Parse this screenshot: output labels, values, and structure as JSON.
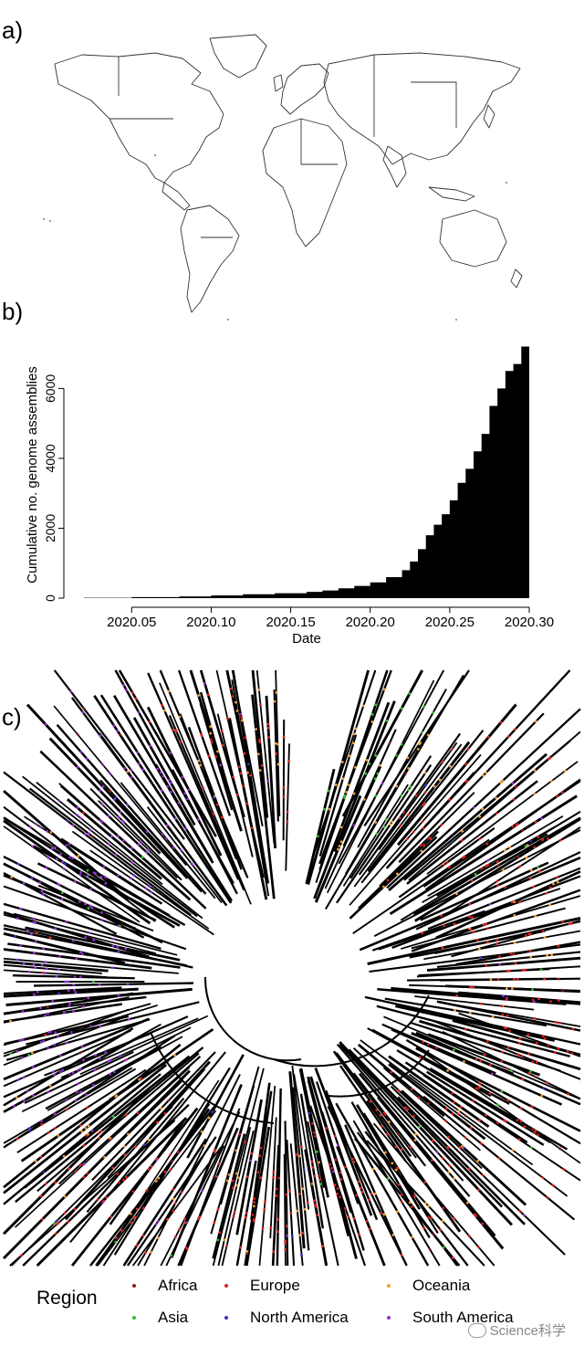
{
  "panels": {
    "a": "a)",
    "b": "b)",
    "c": "c)"
  },
  "chart_data": {
    "type": "area",
    "title": "",
    "xlabel": "Date",
    "ylabel": "Cumulative no. genome assemblies",
    "x_ticks": [
      "2020.05",
      "2020.10",
      "2020.15",
      "2020.20",
      "2020.25",
      "2020.30"
    ],
    "y_ticks": [
      "0",
      "2000",
      "4000",
      "6000"
    ],
    "xlim": [
      2020.02,
      2020.3
    ],
    "ylim": [
      0,
      7500
    ],
    "x": [
      2020.02,
      2020.05,
      2020.08,
      2020.1,
      2020.12,
      2020.14,
      2020.16,
      2020.17,
      2020.18,
      2020.19,
      2020.2,
      2020.21,
      2020.22,
      2020.225,
      2020.23,
      2020.235,
      2020.24,
      2020.245,
      2020.25,
      2020.255,
      2020.26,
      2020.265,
      2020.27,
      2020.275,
      2020.28,
      2020.285,
      2020.29,
      2020.295,
      2020.3
    ],
    "y": [
      10,
      30,
      50,
      80,
      110,
      140,
      180,
      220,
      280,
      350,
      450,
      600,
      800,
      1050,
      1400,
      1800,
      2100,
      2400,
      2800,
      3300,
      3700,
      4200,
      4700,
      5500,
      6000,
      6500,
      6700,
      7200,
      7400
    ],
    "grid": false
  },
  "legend": {
    "title": "Region",
    "items": [
      {
        "label": "Africa",
        "color": "#8b1a1a"
      },
      {
        "label": "Europe",
        "color": "#e02020"
      },
      {
        "label": "Oceania",
        "color": "#f0a030"
      },
      {
        "label": "Asia",
        "color": "#30c030"
      },
      {
        "label": "North America",
        "color": "#3030c0"
      },
      {
        "label": "South America",
        "color": "#9030d0"
      }
    ]
  },
  "watermark": "Science科学"
}
